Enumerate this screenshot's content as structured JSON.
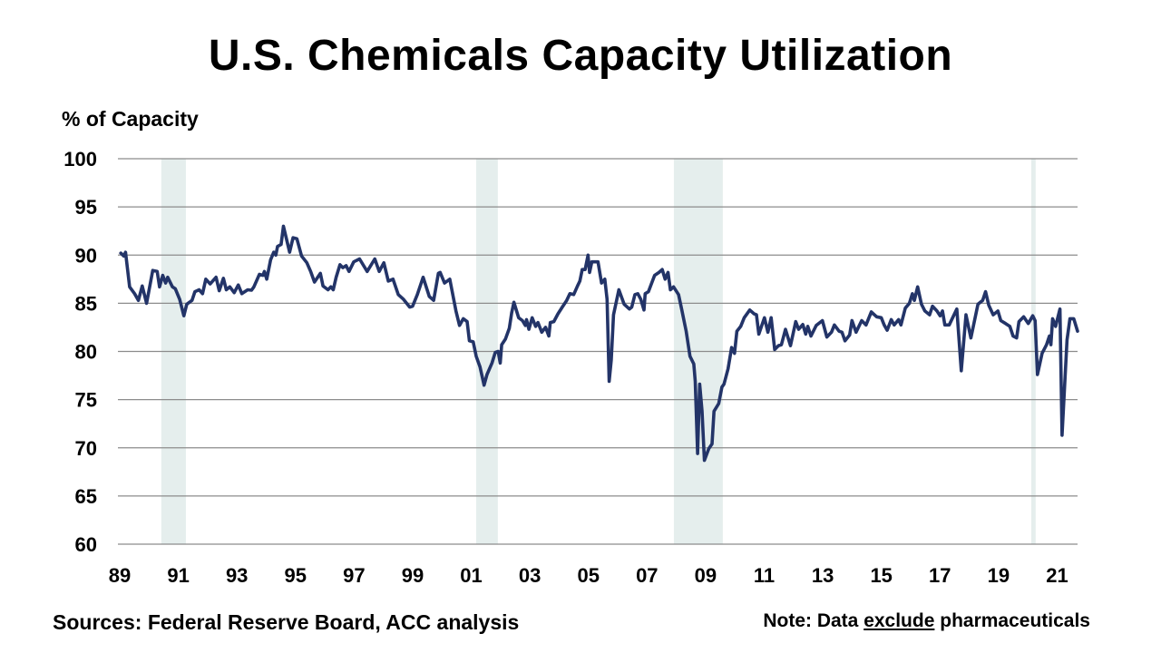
{
  "chart_data": {
    "type": "line",
    "title": "U.S. Chemicals Capacity Utilization",
    "ylabel": "% of Capacity",
    "xlabel": "",
    "ylim": [
      60,
      100
    ],
    "xlim": [
      1989,
      2021.76
    ],
    "yticks": [
      60,
      65,
      70,
      75,
      80,
      85,
      90,
      95,
      100
    ],
    "xticks": [
      {
        "year": 1989,
        "label": "89"
      },
      {
        "year": 1991,
        "label": "91"
      },
      {
        "year": 1993,
        "label": "93"
      },
      {
        "year": 1995,
        "label": "95"
      },
      {
        "year": 1997,
        "label": "97"
      },
      {
        "year": 1999,
        "label": "99"
      },
      {
        "year": 2001,
        "label": "01"
      },
      {
        "year": 2003,
        "label": "03"
      },
      {
        "year": 2005,
        "label": "05"
      },
      {
        "year": 2007,
        "label": "07"
      },
      {
        "year": 2009,
        "label": "09"
      },
      {
        "year": 2011,
        "label": "11"
      },
      {
        "year": 2013,
        "label": "13"
      },
      {
        "year": 2015,
        "label": "15"
      },
      {
        "year": 2017,
        "label": "17"
      },
      {
        "year": 2019,
        "label": "19"
      },
      {
        "year": 2021,
        "label": "21"
      }
    ],
    "grid": true,
    "recession_shading": [
      [
        1990.48,
        1991.32
      ],
      [
        2001.23,
        2001.97
      ],
      [
        2007.98,
        2009.65
      ],
      [
        2020.18,
        2020.33
      ]
    ],
    "colors": {
      "line": "#233468",
      "shading": "#e5eeed",
      "grid": "#8c8c8c"
    },
    "series": [
      {
        "x": [
          1989.1,
          1989.2,
          1989.26,
          1989.4,
          1989.57,
          1989.7,
          1989.83,
          1989.98,
          1990.19,
          1990.34,
          1990.42,
          1990.53,
          1990.63,
          1990.7,
          1990.86,
          1990.96,
          1991.11,
          1991.25,
          1991.35,
          1991.53,
          1991.63,
          1991.77,
          1991.89,
          1992.0,
          1992.15,
          1992.35,
          1992.46,
          1992.6,
          1992.7,
          1992.82,
          1992.97,
          1993.11,
          1993.23,
          1993.43,
          1993.56,
          1993.64,
          1993.83,
          1993.95,
          1994.0,
          1994.08,
          1994.21,
          1994.32,
          1994.39,
          1994.45,
          1994.57,
          1994.65,
          1994.86,
          1994.98,
          1995.11,
          1995.27,
          1995.45,
          1995.58,
          1995.71,
          1995.91,
          1996.0,
          1996.17,
          1996.27,
          1996.35,
          1996.45,
          1996.58,
          1996.68,
          1996.79,
          1996.89,
          1997.05,
          1997.25,
          1997.51,
          1997.77,
          1997.92,
          1998.08,
          1998.23,
          1998.39,
          1998.57,
          1998.75,
          1998.96,
          1999.06,
          1999.22,
          1999.42,
          1999.63,
          1999.78,
          1999.94,
          2000.0,
          2000.15,
          2000.33,
          2000.54,
          2000.66,
          2000.79,
          2000.92,
          2001.0,
          2001.13,
          2001.23,
          2001.36,
          2001.5,
          2001.6,
          2001.77,
          2001.88,
          2001.98,
          2002.05,
          2002.1,
          2002.23,
          2002.36,
          2002.44,
          2002.52,
          2002.68,
          2002.81,
          2002.91,
          2002.95,
          2003.03,
          2003.14,
          2003.26,
          2003.34,
          2003.47,
          2003.6,
          2003.71,
          2003.76,
          2003.88,
          2004.02,
          2004.17,
          2004.32,
          2004.43,
          2004.56,
          2004.69,
          2004.77,
          2004.85,
          2004.95,
          2005.05,
          2005.1,
          2005.18,
          2005.39,
          2005.51,
          2005.62,
          2005.7,
          2005.77,
          2005.84,
          2005.92,
          2006.1,
          2006.28,
          2006.46,
          2006.54,
          2006.65,
          2006.75,
          2006.85,
          2006.96,
          2007.0,
          2007.11,
          2007.21,
          2007.32,
          2007.47,
          2007.58,
          2007.68,
          2007.78,
          2007.86,
          2007.97,
          2008.14,
          2008.25,
          2008.4,
          2008.53,
          2008.66,
          2008.71,
          2008.79,
          2008.86,
          2008.94,
          2009.02,
          2009.17,
          2009.28,
          2009.35,
          2009.51,
          2009.62,
          2009.69,
          2009.83,
          2009.95,
          2010.05,
          2010.13,
          2010.26,
          2010.38,
          2010.57,
          2010.72,
          2010.8,
          2010.88,
          2011.07,
          2011.19,
          2011.3,
          2011.42,
          2011.55,
          2011.65,
          2011.79,
          2011.96,
          2012.14,
          2012.24,
          2012.38,
          2012.48,
          2012.55,
          2012.66,
          2012.84,
          2013.05,
          2013.2,
          2013.36,
          2013.46,
          2013.62,
          2013.72,
          2013.82,
          2013.98,
          2014.06,
          2014.2,
          2014.39,
          2014.54,
          2014.72,
          2014.9,
          2015.06,
          2015.16,
          2015.26,
          2015.4,
          2015.5,
          2015.65,
          2015.73,
          2015.88,
          2016.02,
          2016.12,
          2016.19,
          2016.3,
          2016.43,
          2016.55,
          2016.71,
          2016.81,
          2016.96,
          2017.07,
          2017.15,
          2017.23,
          2017.38,
          2017.64,
          2017.79,
          2017.95,
          2018.12,
          2018.36,
          2018.52,
          2018.62,
          2018.73,
          2018.88,
          2019.04,
          2019.14,
          2019.3,
          2019.45,
          2019.56,
          2019.68,
          2019.76,
          2019.92,
          2020.08,
          2020.23,
          2020.31,
          2020.39,
          2020.55,
          2020.7,
          2020.8,
          2020.85,
          2020.91,
          2021.01,
          2021.16,
          2021.23,
          2021.4,
          2021.5,
          2021.63,
          2021.76
        ],
        "y": [
          90.2,
          89.9,
          90.3,
          86.7,
          86.0,
          85.3,
          86.8,
          85.0,
          88.4,
          88.3,
          86.7,
          87.9,
          87.1,
          87.7,
          86.7,
          86.5,
          85.4,
          83.7,
          84.9,
          85.3,
          86.2,
          86.4,
          86.0,
          87.5,
          87.0,
          87.7,
          86.3,
          87.6,
          86.4,
          86.7,
          86.1,
          86.9,
          86.0,
          86.4,
          86.35,
          86.7,
          88.0,
          87.9,
          88.3,
          87.5,
          89.5,
          90.3,
          90.0,
          90.9,
          91.1,
          93.0,
          90.3,
          91.8,
          91.7,
          89.9,
          89.2,
          88.3,
          87.2,
          88.1,
          86.8,
          86.4,
          86.7,
          86.4,
          87.7,
          89.0,
          88.7,
          88.9,
          88.3,
          89.3,
          89.6,
          88.3,
          89.6,
          88.3,
          89.2,
          87.3,
          87.5,
          85.9,
          85.4,
          84.6,
          84.7,
          85.9,
          87.7,
          85.7,
          85.3,
          88.1,
          88.2,
          87.1,
          87.5,
          84.2,
          82.7,
          83.4,
          83.1,
          81.1,
          81.0,
          79.5,
          78.4,
          76.5,
          77.6,
          78.8,
          79.9,
          80.0,
          78.8,
          80.7,
          81.3,
          82.4,
          84.0,
          85.1,
          83.5,
          83.2,
          82.7,
          83.3,
          82.3,
          83.5,
          82.6,
          83.0,
          82.0,
          82.5,
          81.6,
          83.0,
          83.1,
          83.9,
          84.6,
          85.3,
          86.0,
          85.9,
          86.8,
          87.3,
          88.5,
          88.5,
          90.0,
          88.2,
          89.3,
          89.3,
          87.1,
          87.5,
          85.4,
          76.9,
          79.1,
          83.8,
          86.4,
          84.9,
          84.4,
          84.6,
          85.9,
          86.0,
          85.4,
          84.3,
          86.0,
          86.2,
          87.0,
          87.9,
          88.2,
          88.5,
          87.5,
          88.2,
          86.4,
          86.7,
          85.9,
          84.3,
          82.1,
          79.5,
          78.7,
          76.9,
          69.4,
          76.6,
          73.8,
          68.7,
          69.9,
          70.4,
          73.8,
          74.6,
          76.3,
          76.6,
          78.2,
          80.4,
          79.8,
          82.1,
          82.6,
          83.5,
          84.3,
          83.9,
          83.8,
          81.8,
          83.5,
          82.0,
          83.5,
          80.2,
          80.6,
          80.7,
          82.3,
          80.6,
          83.1,
          82.3,
          82.8,
          81.8,
          82.6,
          81.6,
          82.7,
          83.2,
          81.5,
          82.0,
          82.75,
          82.1,
          82.0,
          81.1,
          81.7,
          83.2,
          82.0,
          83.2,
          82.75,
          84.1,
          83.6,
          83.5,
          82.75,
          82.2,
          83.3,
          82.75,
          83.3,
          82.75,
          84.5,
          85.0,
          86.0,
          85.3,
          86.7,
          84.9,
          84.2,
          83.8,
          84.7,
          84.2,
          83.7,
          84.2,
          82.75,
          82.75,
          84.4,
          78.0,
          83.8,
          81.4,
          84.9,
          85.3,
          86.2,
          84.8,
          83.8,
          84.2,
          83.2,
          82.9,
          82.6,
          81.6,
          81.4,
          83.1,
          83.6,
          82.9,
          83.7,
          83.2,
          77.6,
          79.8,
          80.7,
          81.6,
          80.7,
          83.4,
          82.6,
          84.4,
          71.3,
          81.2,
          83.4,
          83.4,
          82.1
        ]
      }
    ]
  },
  "footer": {
    "sources": "Sources: Federal Reserve Board, ACC analysis",
    "note_prefix": "Note: Data ",
    "note_emphasis": "exclude",
    "note_suffix": " pharmaceuticals"
  }
}
